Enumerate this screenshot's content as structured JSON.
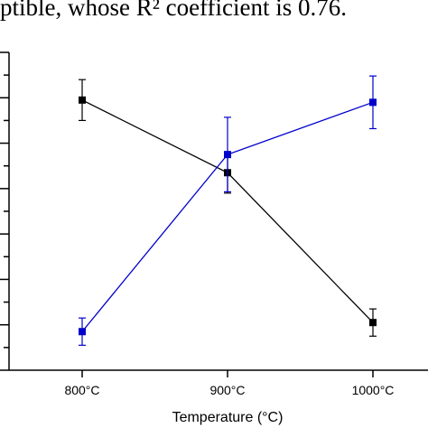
{
  "caption": {
    "text": "ptible, whose R² coefficient is 0.76."
  },
  "colors": {
    "axis": "#000000",
    "series_black": "#000000",
    "series_blue": "#0000cc"
  },
  "chart_data": {
    "type": "line",
    "title": "",
    "xlabel": "Temperature (°C)",
    "ylabel": "",
    "categories": [
      "800°C",
      "900°C",
      "1000°C"
    ],
    "ylim": [
      0,
      7
    ],
    "y_tick_count": 8,
    "grid": false,
    "legend": "none",
    "series": [
      {
        "color": "#000000",
        "values": [
          5.95,
          4.35,
          1.05
        ],
        "errors": [
          0.45,
          0.45,
          0.3
        ]
      },
      {
        "color": "#0000cc",
        "values": [
          0.85,
          4.75,
          5.9
        ],
        "errors": [
          0.3,
          0.82,
          0.58
        ]
      }
    ]
  }
}
